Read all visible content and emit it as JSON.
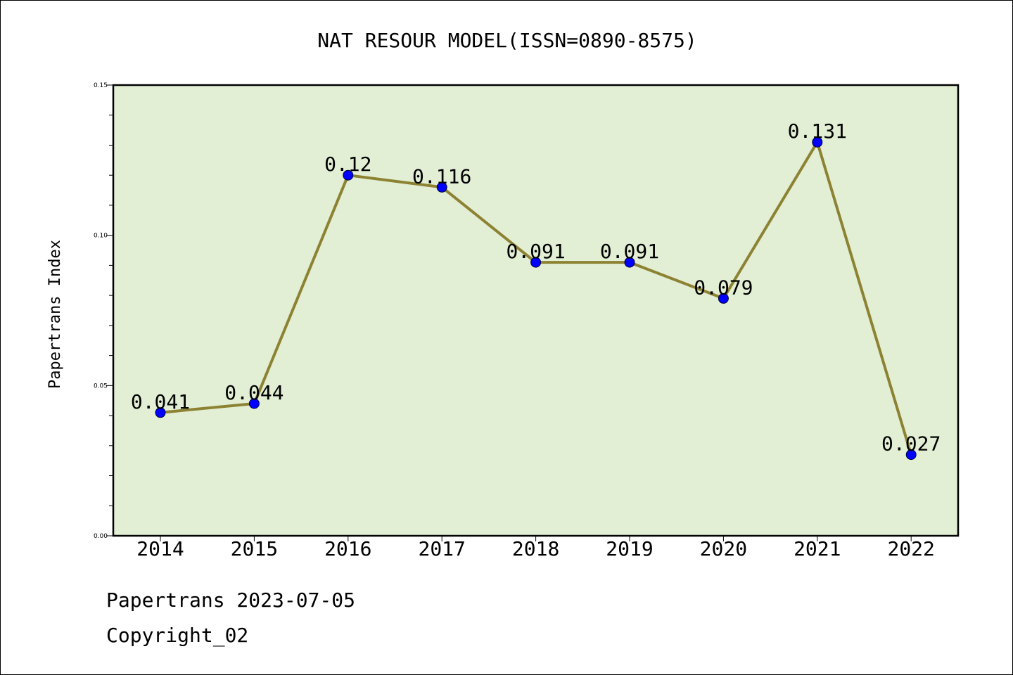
{
  "chart_data": {
    "type": "line",
    "title": "NAT RESOUR MODEL(ISSN=0890-8575)",
    "xlabel": "",
    "ylabel": "Papertrans Index",
    "categories": [
      "2014",
      "2015",
      "2016",
      "2017",
      "2018",
      "2019",
      "2020",
      "2021",
      "2022"
    ],
    "values": [
      0.041,
      0.044,
      0.12,
      0.116,
      0.091,
      0.091,
      0.079,
      0.131,
      0.027
    ],
    "data_labels": [
      "0.041",
      "0.044",
      "0.12",
      "0.116",
      "0.091",
      "0.091",
      "0.079",
      "0.131",
      "0.027"
    ],
    "ylim": [
      0,
      0.15
    ],
    "y_ticks": [
      "0.00",
      "0.05",
      "0.10",
      "0.15"
    ],
    "grid": false,
    "legend": "none",
    "colors": {
      "plot_background": "#e2efd5",
      "line": "#8c8232",
      "marker": "#0000ff"
    }
  },
  "footer": {
    "source": "Papertrans 2023-07-05",
    "copyright": "Copyright_02"
  }
}
